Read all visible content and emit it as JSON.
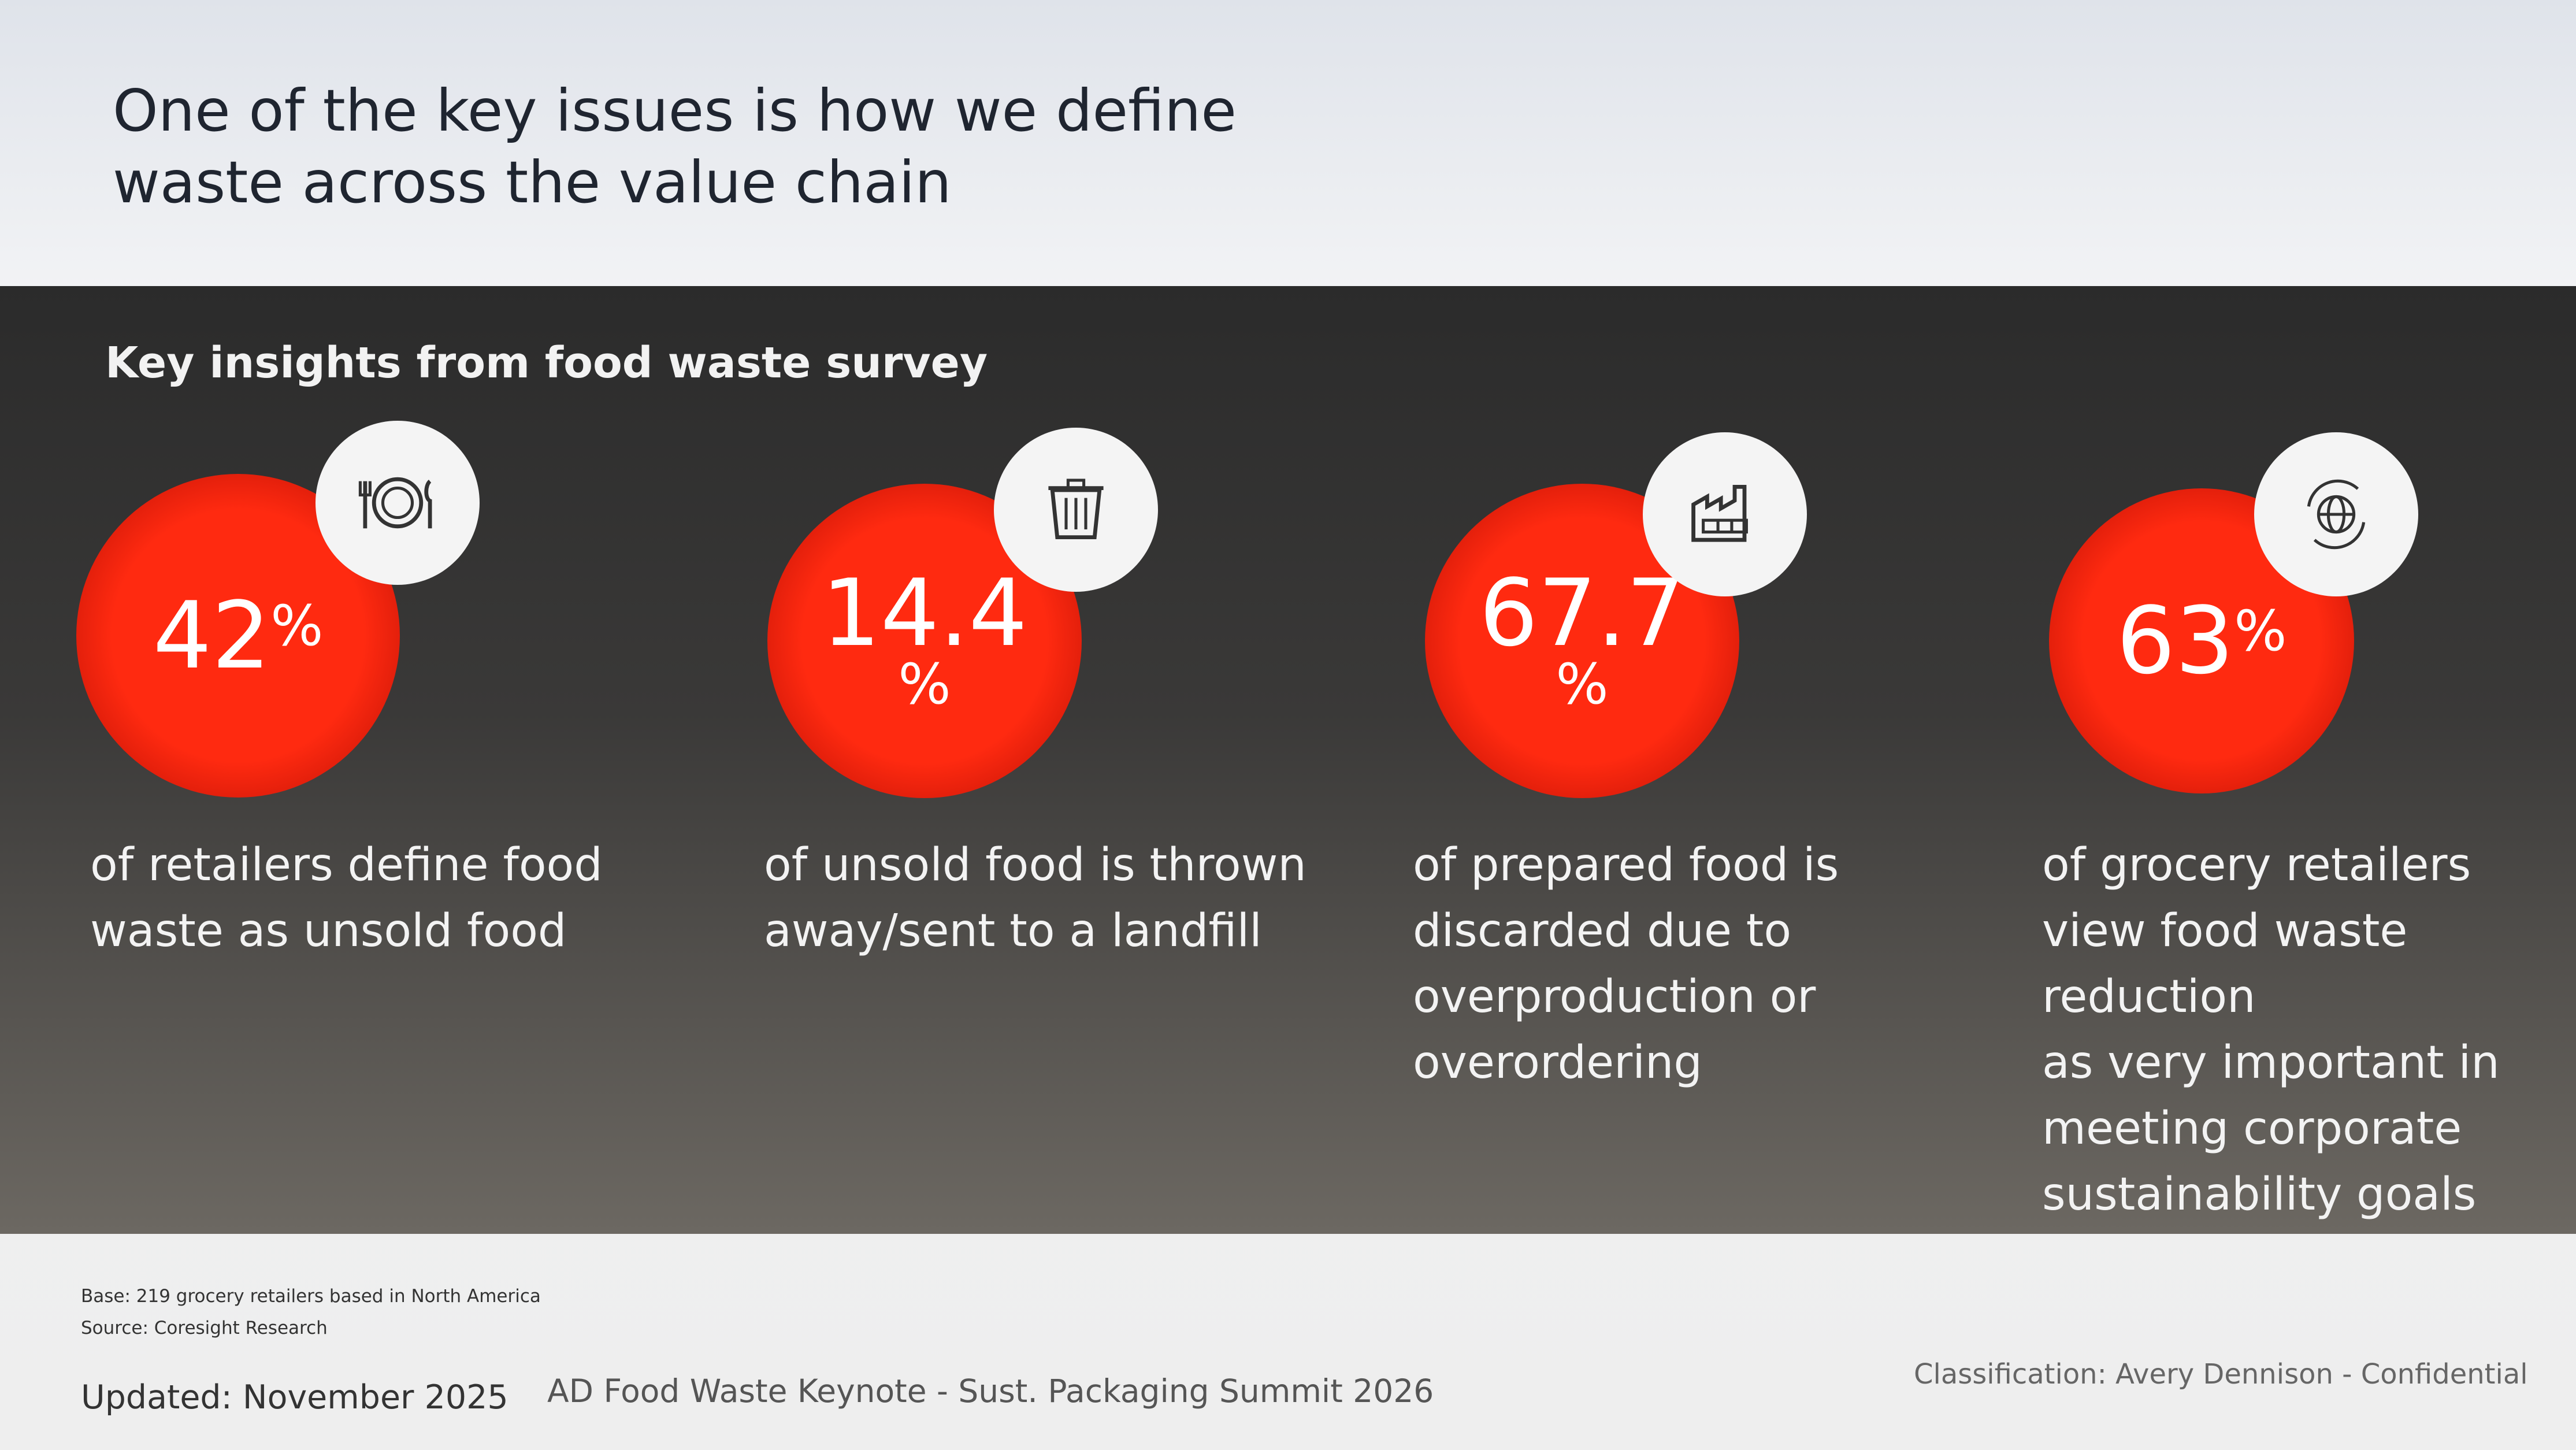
{
  "header": {
    "title_lines": [
      "One of the key issues is how we define",
      "waste across the value chain"
    ]
  },
  "section": {
    "heading": "Key insights from food waste survey",
    "stats": [
      {
        "number": "42",
        "unit": "%",
        "description_lines": [
          "of retailers define food",
          "waste as unsold food"
        ]
      },
      {
        "number": "14.4",
        "unit": "%",
        "description_lines": [
          "of unsold food is thrown",
          "away/sent to a landfill"
        ]
      },
      {
        "number": "67.7",
        "unit": "%",
        "description_lines": [
          "of prepared food is",
          "discarded due to",
          "overproduction or",
          "overordering"
        ]
      },
      {
        "number": "63",
        "unit": "%",
        "description_lines": [
          "of grocery retailers",
          "view food waste reduction",
          "as very important in",
          "meeting corporate",
          "sustainability goals"
        ]
      }
    ]
  },
  "footer": {
    "base": "Base: 219 grocery retailers based in North America",
    "source": "Source: Coresight Research",
    "updated": "Updated: November 2025",
    "deck": "AD Food Waste Keynote - Sust. Packaging Summit 2026",
    "classification": "Classification: Avery Dennison - Confidential"
  }
}
